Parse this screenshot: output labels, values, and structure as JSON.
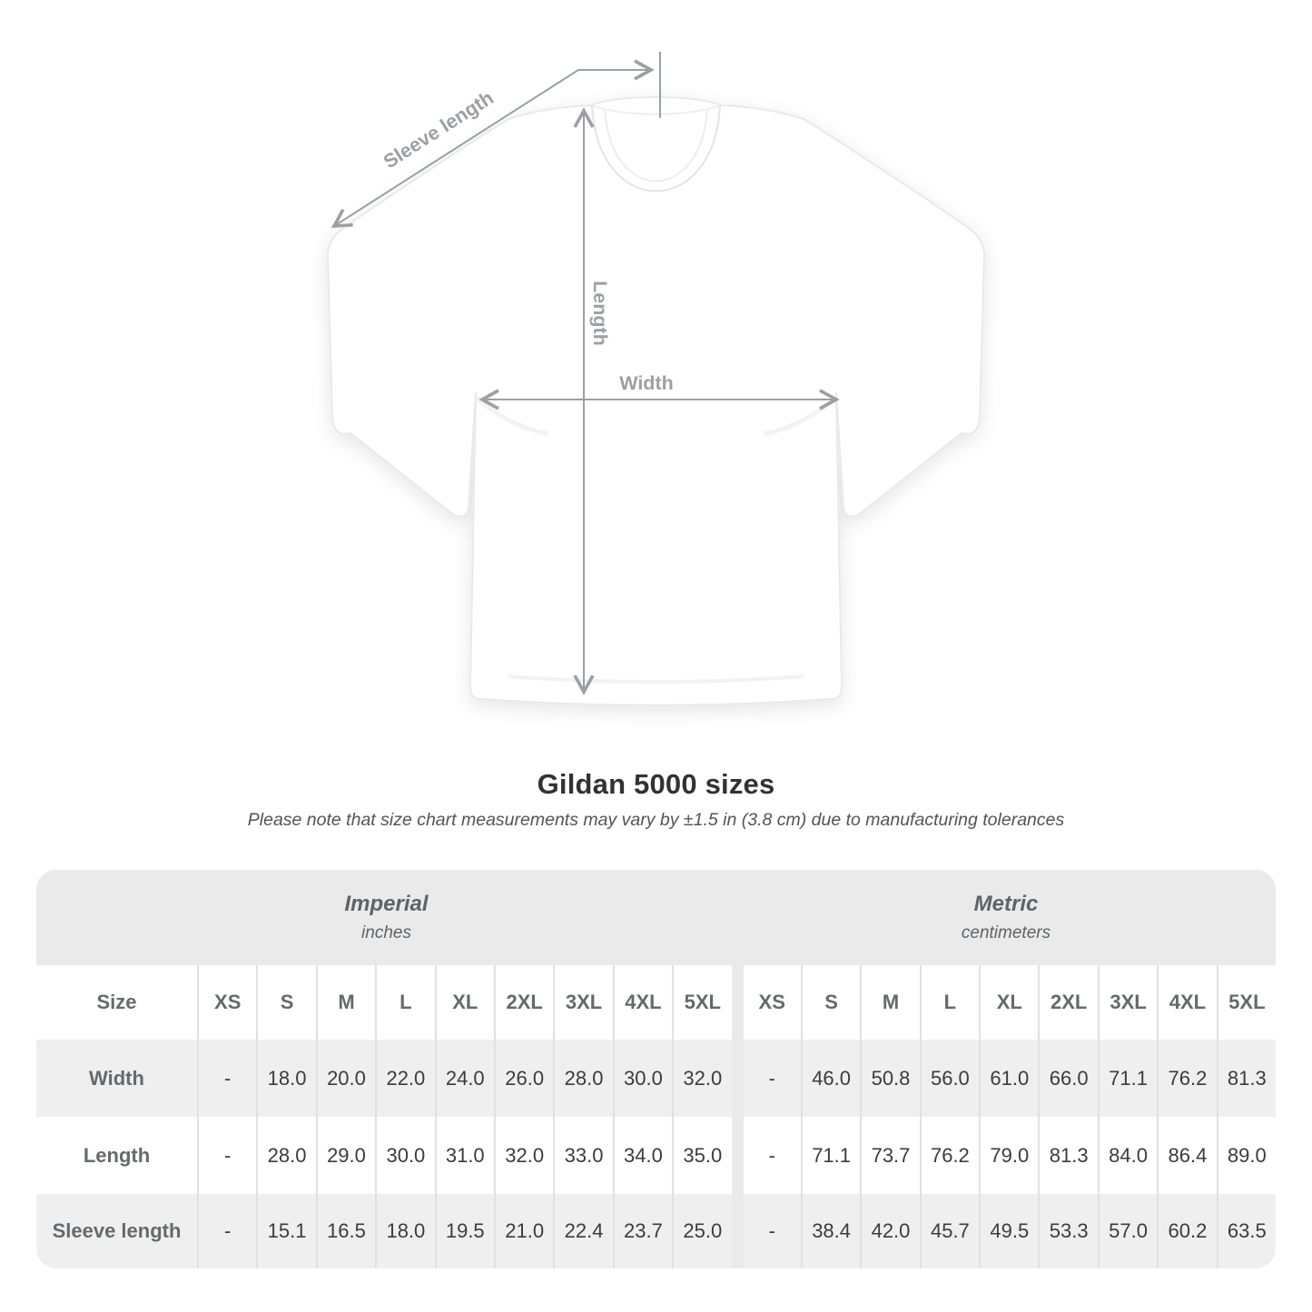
{
  "diagram": {
    "labels": {
      "sleeve_length": "Sleeve length",
      "length": "Length",
      "width": "Width"
    }
  },
  "title": "Gildan 5000 sizes",
  "subtitle": "Please note that size chart measurements may vary by ±1.5 in (3.8 cm) due to manufacturing tolerances",
  "table": {
    "unit_groups": [
      {
        "label": "Imperial",
        "sublabel": "inches"
      },
      {
        "label": "Metric",
        "sublabel": "centimeters"
      }
    ],
    "size_col_header": "Size",
    "sizes": [
      "XS",
      "S",
      "M",
      "L",
      "XL",
      "2XL",
      "3XL",
      "4XL",
      "5XL"
    ],
    "rows": [
      {
        "label": "Width",
        "imperial": [
          "-",
          "18.0",
          "20.0",
          "22.0",
          "24.0",
          "26.0",
          "28.0",
          "30.0",
          "32.0"
        ],
        "metric": [
          "-",
          "46.0",
          "50.8",
          "56.0",
          "61.0",
          "66.0",
          "71.1",
          "76.2",
          "81.3"
        ]
      },
      {
        "label": "Length",
        "imperial": [
          "-",
          "28.0",
          "29.0",
          "30.0",
          "31.0",
          "32.0",
          "33.0",
          "34.0",
          "35.0"
        ],
        "metric": [
          "-",
          "71.1",
          "73.7",
          "76.2",
          "79.0",
          "81.3",
          "84.0",
          "86.4",
          "89.0"
        ]
      },
      {
        "label": "Sleeve length",
        "imperial": [
          "-",
          "15.1",
          "16.5",
          "18.0",
          "19.5",
          "21.0",
          "22.4",
          "23.7",
          "25.0"
        ],
        "metric": [
          "-",
          "38.4",
          "42.0",
          "45.7",
          "49.5",
          "53.3",
          "57.0",
          "60.2",
          "63.5"
        ]
      }
    ]
  },
  "colors": {
    "annotation_gray": "#9aa0a4",
    "band_gray": "#eaeaea",
    "row_shade_gray": "#efefef",
    "divider_gray": "#e1e1e1",
    "label_text": "#66696c",
    "value_text": "#3c3c3c"
  }
}
